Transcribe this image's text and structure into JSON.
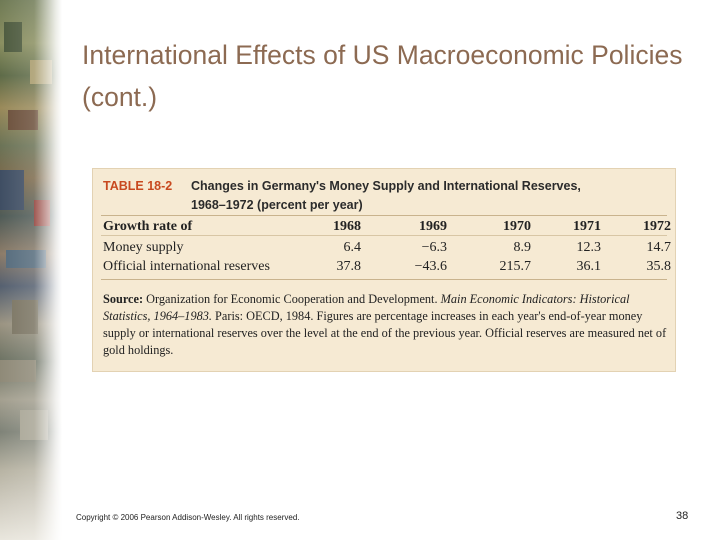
{
  "slide": {
    "title": "International Effects of US Macroeconomic Policies (cont.)",
    "copyright": "Copyright © 2006 Pearson Addison-Wesley. All rights reserved.",
    "page_number": "38"
  },
  "table": {
    "number": "TABLE 18-2",
    "caption_line1": "Changes in Germany's Money Supply and International Reserves,",
    "caption_line2": "1968–1972 (percent per year)",
    "header": [
      "Growth rate of",
      "1968",
      "1969",
      "1970",
      "1971",
      "1972"
    ],
    "rows": [
      [
        "Money supply",
        "6.4",
        "−6.3",
        "8.9",
        "12.3",
        "14.7"
      ],
      [
        "Official international reserves",
        "37.8",
        "−43.6",
        "215.7",
        "36.1",
        "35.8"
      ]
    ],
    "source_label": "Source:",
    "source_text1": "Organization for Economic Cooperation and Development.",
    "source_italic": "Main Economic Indicators: Historical Statistics, 1964–1983.",
    "source_text2": "Paris: OECD, 1984. Figures are percentage increases in each year's end-of-year money supply or international reserves over the level at the end of the previous year. Official reserves are measured net of gold holdings."
  }
}
